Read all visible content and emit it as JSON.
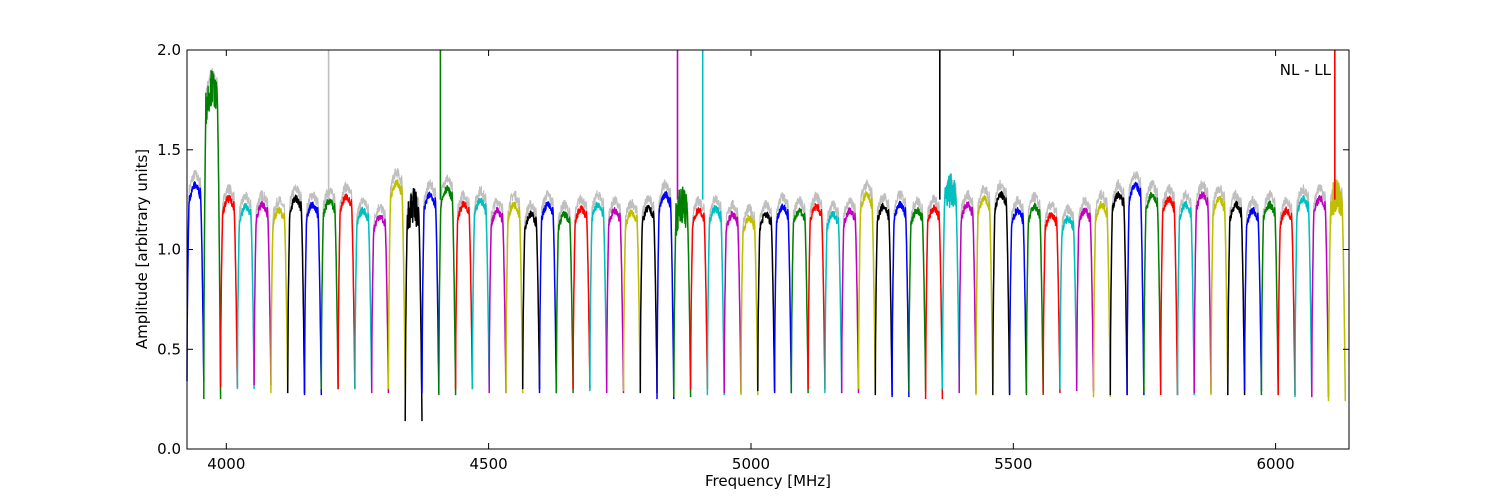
{
  "chart_data": {
    "type": "line",
    "title": "",
    "annotation": "NL - LL",
    "xlabel": "Frequency [MHz]",
    "ylabel": "Amplitude [arbitrary units]",
    "xlim": [
      3925,
      6140
    ],
    "ylim": [
      0.0,
      2.0
    ],
    "xticks": [
      4000,
      4500,
      5000,
      5500,
      6000
    ],
    "xtick_labels": [
      "4000",
      "4500",
      "5000",
      "5500",
      "6000"
    ],
    "yticks": [
      0.0,
      0.5,
      1.0,
      1.5,
      2.0
    ],
    "ytick_labels": [
      "0.0",
      "0.5",
      "1.0",
      "1.5",
      "2.0"
    ],
    "grid": false,
    "colors": {
      "blue": "#0000ff",
      "green": "#008000",
      "red": "#ff0000",
      "cyan": "#00bfbf",
      "magenta": "#bf00bf",
      "yellow": "#bfbf00",
      "black": "#000000",
      "raw": "#bfbfbf"
    },
    "color_cycle": [
      "blue",
      "green",
      "red",
      "cyan",
      "magenta",
      "yellow",
      "black"
    ],
    "band_width_mhz": 32,
    "band_count": 69,
    "band_peaks": [
      1.35,
      1.85,
      1.28,
      1.24,
      1.25,
      1.22,
      1.28,
      1.25,
      1.27,
      1.29,
      1.22,
      1.19,
      1.36,
      1.25,
      1.3,
      1.33,
      1.25,
      1.27,
      1.22,
      1.25,
      1.2,
      1.25,
      1.2,
      1.23,
      1.25,
      1.22,
      1.21,
      1.23,
      1.3,
      1.25,
      1.22,
      1.23,
      1.2,
      1.18,
      1.2,
      1.24,
      1.22,
      1.24,
      1.2,
      1.22,
      1.3,
      1.24,
      1.25,
      1.22,
      1.23,
      1.32,
      1.25,
      1.28,
      1.3,
      1.22,
      1.24,
      1.2,
      1.18,
      1.22,
      1.25,
      1.3,
      1.35,
      1.3,
      1.28,
      1.25,
      1.3,
      1.28,
      1.25,
      1.22,
      1.25,
      1.22,
      1.28,
      1.28,
      1.3
    ],
    "band_troughs": [
      0.34,
      0.25,
      0.31,
      0.3,
      0.32,
      0.28,
      0.28,
      0.27,
      0.3,
      0.3,
      0.3,
      0.28,
      0.3,
      0.14,
      0.28,
      0.27,
      0.3,
      0.3,
      0.28,
      0.28,
      0.3,
      0.28,
      0.28,
      0.3,
      0.29,
      0.28,
      0.29,
      0.28,
      0.25,
      0.26,
      0.3,
      0.27,
      0.28,
      0.27,
      0.29,
      0.28,
      0.28,
      0.3,
      0.28,
      0.28,
      0.3,
      0.27,
      0.26,
      0.29,
      0.25,
      0.3,
      0.28,
      0.27,
      0.27,
      0.28,
      0.27,
      0.28,
      0.3,
      0.29,
      0.26,
      0.27,
      0.27,
      0.28,
      0.27,
      0.27,
      0.28,
      0.27,
      0.27,
      0.29,
      0.27,
      0.27,
      0.26,
      0.26,
      0.24
    ],
    "spikes": [
      {
        "x": 4195,
        "y": 2.0,
        "color": "raw"
      },
      {
        "x": 4408,
        "y": 2.0,
        "color": "green"
      },
      {
        "x": 4860,
        "y": 2.0,
        "color": "magenta"
      },
      {
        "x": 4908,
        "y": 2.0,
        "color": "cyan"
      },
      {
        "x": 5360,
        "y": 2.0,
        "color": "black"
      },
      {
        "x": 6113,
        "y": 2.0,
        "color": "red"
      }
    ]
  }
}
